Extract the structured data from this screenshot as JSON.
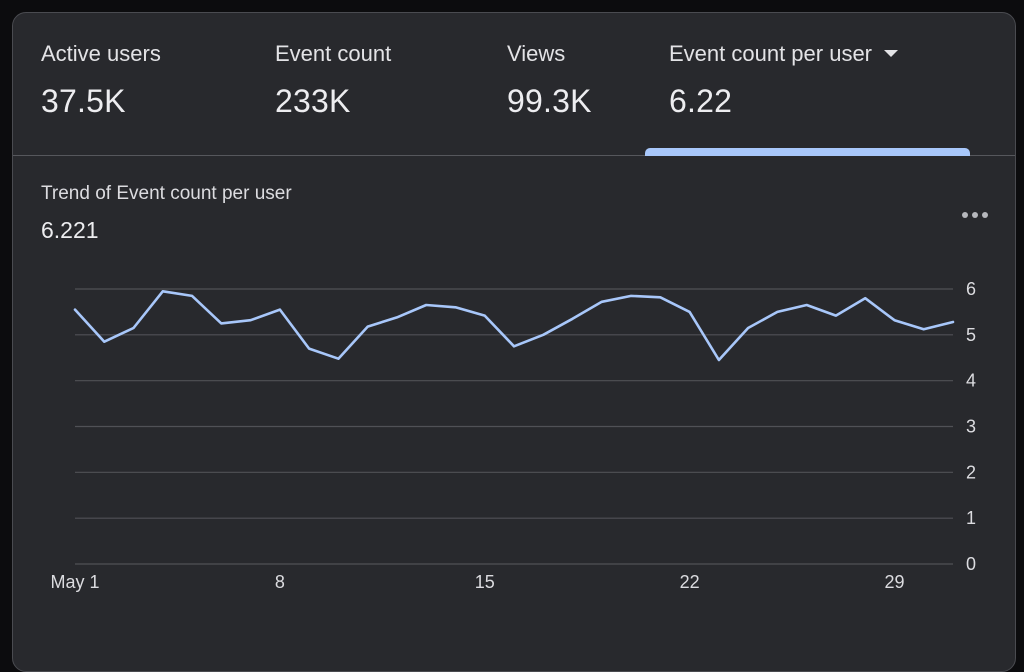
{
  "tabs": [
    {
      "label": "Active users",
      "value": "37.5K",
      "selected": false
    },
    {
      "label": "Event count",
      "value": "233K",
      "selected": false
    },
    {
      "label": "Views",
      "value": "99.3K",
      "selected": false
    },
    {
      "label": "Event count per user",
      "value": "6.22",
      "selected": true,
      "icon": "caret-down-icon"
    }
  ],
  "chart_header": {
    "title": "Trend of Event count per user",
    "value": "6.221",
    "menu_icon": "more-horizontal-icon"
  },
  "colors": {
    "background": "#28292d",
    "line": "#a8c7fa",
    "indicator": "#a8c7fa",
    "grid": "#505156",
    "text": "#dcdce0"
  },
  "chart_data": {
    "type": "line",
    "title": "Trend of Event count per user",
    "xlabel": "",
    "ylabel": "",
    "x_tick_labels": [
      "May 1",
      "8",
      "15",
      "22",
      "29"
    ],
    "x_tick_days": [
      1,
      8,
      15,
      22,
      29
    ],
    "y_ticks": [
      0,
      1,
      2,
      3,
      4,
      5,
      6
    ],
    "ylim": [
      0,
      6
    ],
    "y_axis_position": "right",
    "grid": true,
    "series": [
      {
        "days": [
          1,
          2,
          3,
          4,
          5,
          6,
          7,
          8,
          9,
          10,
          11,
          12,
          13,
          14,
          15,
          16,
          17,
          18,
          19,
          20,
          21,
          22,
          23,
          24,
          25,
          26,
          27,
          28,
          29,
          30,
          31
        ],
        "values": [
          5.55,
          4.85,
          5.15,
          5.95,
          5.85,
          5.25,
          5.32,
          5.55,
          4.7,
          4.48,
          5.18,
          5.38,
          5.65,
          5.6,
          5.42,
          4.75,
          5.0,
          5.35,
          5.72,
          5.85,
          5.82,
          5.5,
          4.45,
          5.15,
          5.5,
          5.65,
          5.42,
          5.8,
          5.32,
          5.12,
          5.28
        ]
      }
    ]
  }
}
